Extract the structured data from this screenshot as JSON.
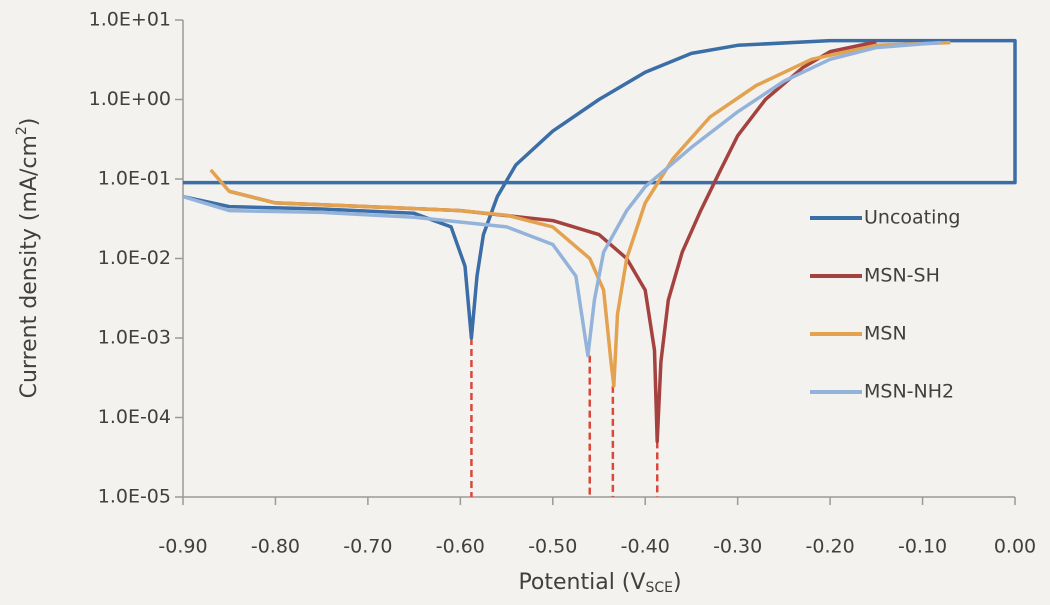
{
  "chart_data": {
    "type": "line",
    "log_y": true,
    "xlabel": {
      "text": "Potential (V",
      "sub": "SCE",
      "end": ")"
    },
    "ylabel": {
      "text": "Current density  (mA/cm",
      "sup": "2",
      "end": ")"
    },
    "xlim": [
      -0.9,
      0.0
    ],
    "xticks": [
      {
        "value": -0.9,
        "label": "-0.90"
      },
      {
        "value": -0.8,
        "label": "-0.80"
      },
      {
        "value": -0.7,
        "label": "-0.70"
      },
      {
        "value": -0.6,
        "label": "-0.60"
      },
      {
        "value": -0.5,
        "label": "-0.50"
      },
      {
        "value": -0.4,
        "label": "-0.40"
      },
      {
        "value": -0.3,
        "label": "-0.30"
      },
      {
        "value": -0.2,
        "label": "-0.20"
      },
      {
        "value": -0.1,
        "label": "-0.10"
      },
      {
        "value": 0,
        "label": "0.00"
      }
    ],
    "ylim": [
      1e-05,
      10
    ],
    "yticks": [
      {
        "value": 1e-05,
        "label": "1.0E-05"
      },
      {
        "value": 0.0001,
        "label": "1.0E-04"
      },
      {
        "value": 0.001,
        "label": "1.0E-03"
      },
      {
        "value": 0.01,
        "label": "1.0E-02"
      },
      {
        "value": 0.1,
        "label": "1.0E-01"
      },
      {
        "value": 1,
        "label": "1.0E+00"
      },
      {
        "value": 10,
        "label": "1.0E+01"
      }
    ],
    "legend": "right",
    "series": [
      {
        "name": "Uncoating",
        "color": "#3b6da6",
        "x": [
          -0.9,
          -0.85,
          -0.75,
          -0.65,
          -0.61,
          -0.595,
          -0.588,
          -0.582,
          -0.575,
          -0.56,
          -0.54,
          -0.5,
          -0.45,
          -0.4,
          -0.35,
          -0.3,
          -0.2,
          0.0,
          0.0,
          -0.9
        ],
        "values": [
          0.06,
          0.045,
          0.042,
          0.037,
          0.025,
          0.008,
          0.001,
          0.006,
          0.02,
          0.06,
          0.15,
          0.4,
          1.0,
          2.2,
          3.8,
          4.8,
          5.5,
          5.5,
          0.09,
          0.09
        ]
      },
      {
        "name": "MSN-SH",
        "color": "#a4423f",
        "x": [
          -0.85,
          -0.8,
          -0.7,
          -0.6,
          -0.5,
          -0.45,
          -0.42,
          -0.4,
          -0.39,
          -0.387,
          -0.383,
          -0.375,
          -0.36,
          -0.34,
          -0.32,
          -0.3,
          -0.27,
          -0.23,
          -0.2,
          -0.15
        ],
        "values": [
          0.07,
          0.05,
          0.045,
          0.04,
          0.03,
          0.02,
          0.01,
          0.004,
          0.0007,
          5e-05,
          0.0005,
          0.003,
          0.012,
          0.04,
          0.12,
          0.35,
          1.0,
          2.5,
          4.0,
          5.3
        ]
      },
      {
        "name": "MSN",
        "color": "#e3a24f",
        "x": [
          -0.87,
          -0.85,
          -0.8,
          -0.7,
          -0.6,
          -0.55,
          -0.5,
          -0.46,
          -0.445,
          -0.437,
          -0.434,
          -0.43,
          -0.42,
          -0.4,
          -0.37,
          -0.33,
          -0.28,
          -0.22,
          -0.15,
          -0.07
        ],
        "values": [
          0.13,
          0.07,
          0.05,
          0.045,
          0.04,
          0.035,
          0.025,
          0.01,
          0.004,
          0.0005,
          0.00025,
          0.002,
          0.01,
          0.05,
          0.18,
          0.6,
          1.5,
          3.2,
          4.8,
          5.2
        ]
      },
      {
        "name": "MSN-NH2",
        "color": "#93b3da",
        "x": [
          -0.9,
          -0.85,
          -0.75,
          -0.65,
          -0.55,
          -0.5,
          -0.475,
          -0.462,
          -0.455,
          -0.445,
          -0.42,
          -0.4,
          -0.35,
          -0.3,
          -0.25,
          -0.2,
          -0.15,
          -0.1,
          -0.08
        ],
        "values": [
          0.06,
          0.04,
          0.038,
          0.033,
          0.025,
          0.015,
          0.006,
          0.0006,
          0.003,
          0.012,
          0.04,
          0.08,
          0.25,
          0.7,
          1.7,
          3.2,
          4.5,
          5.0,
          5.2
        ]
      }
    ],
    "drop_lines": {
      "color": "#d9483b",
      "x": [
        -0.588,
        -0.46,
        -0.435,
        -0.387
      ],
      "values": [
        0.001,
        0.0006,
        0.00025,
        5e-05
      ]
    }
  }
}
